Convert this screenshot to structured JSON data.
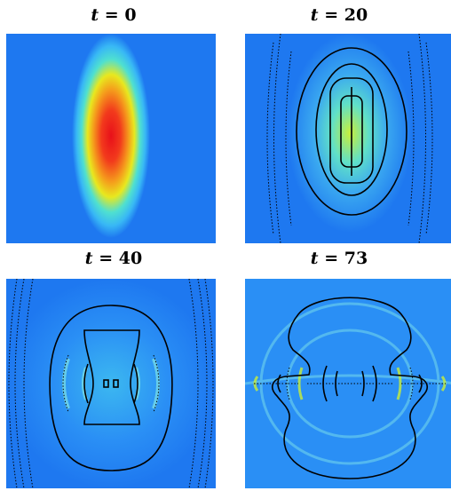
{
  "panels": [
    {
      "id": "p0",
      "title_var": "t",
      "title_eq": " = ",
      "title_num": "0"
    },
    {
      "id": "p1",
      "title_var": "t",
      "title_eq": " = ",
      "title_num": "20"
    },
    {
      "id": "p2",
      "title_var": "t",
      "title_eq": " = ",
      "title_num": "40"
    },
    {
      "id": "p3",
      "title_var": "t",
      "title_eq": " = ",
      "title_num": "73"
    }
  ],
  "colors": {
    "background": "#1e78f0",
    "low": "#2a8ff5",
    "mid": "#39d6e8",
    "high": "#f7e21a",
    "peak": "#f5181c",
    "contour": "#000000"
  }
}
